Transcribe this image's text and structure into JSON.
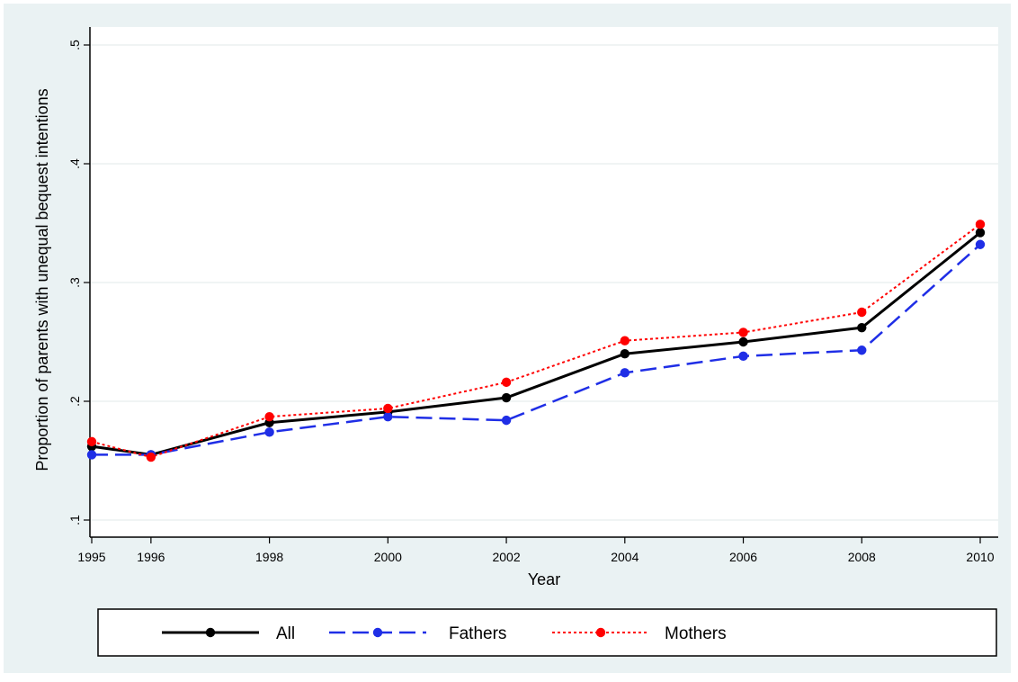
{
  "chart_data": {
    "type": "line",
    "xlabel": "Year",
    "ylabel": "Proportion of parents with unequal bequest intentions",
    "x": [
      1995,
      1996,
      1998,
      2000,
      2002,
      2004,
      2006,
      2008,
      2010
    ],
    "x_tick_labels": [
      "1995",
      "1996",
      "1998",
      "2000",
      "2002",
      "2004",
      "2006",
      "2008",
      "2010"
    ],
    "y_ticks": [
      0.1,
      0.2,
      0.3,
      0.4,
      0.5
    ],
    "y_tick_labels": [
      ".1",
      ".2",
      ".3",
      ".4",
      ".5"
    ],
    "xlim": [
      1995,
      2010
    ],
    "ylim": [
      0.1,
      0.5
    ],
    "grid": "horizontal",
    "legend_position": "bottom",
    "series": [
      {
        "name": "All",
        "color": "#000000",
        "style": "solid",
        "values": [
          0.162,
          0.155,
          0.182,
          0.191,
          0.203,
          0.24,
          0.25,
          0.262,
          0.342
        ]
      },
      {
        "name": "Fathers",
        "color": "#1f2ee6",
        "style": "dashed",
        "values": [
          0.155,
          0.155,
          0.174,
          0.187,
          0.184,
          0.224,
          0.238,
          0.243,
          0.332
        ]
      },
      {
        "name": "Mothers",
        "color": "#ff0000",
        "style": "dotted",
        "values": [
          0.166,
          0.153,
          0.187,
          0.194,
          0.216,
          0.251,
          0.258,
          0.275,
          0.349
        ]
      }
    ]
  }
}
